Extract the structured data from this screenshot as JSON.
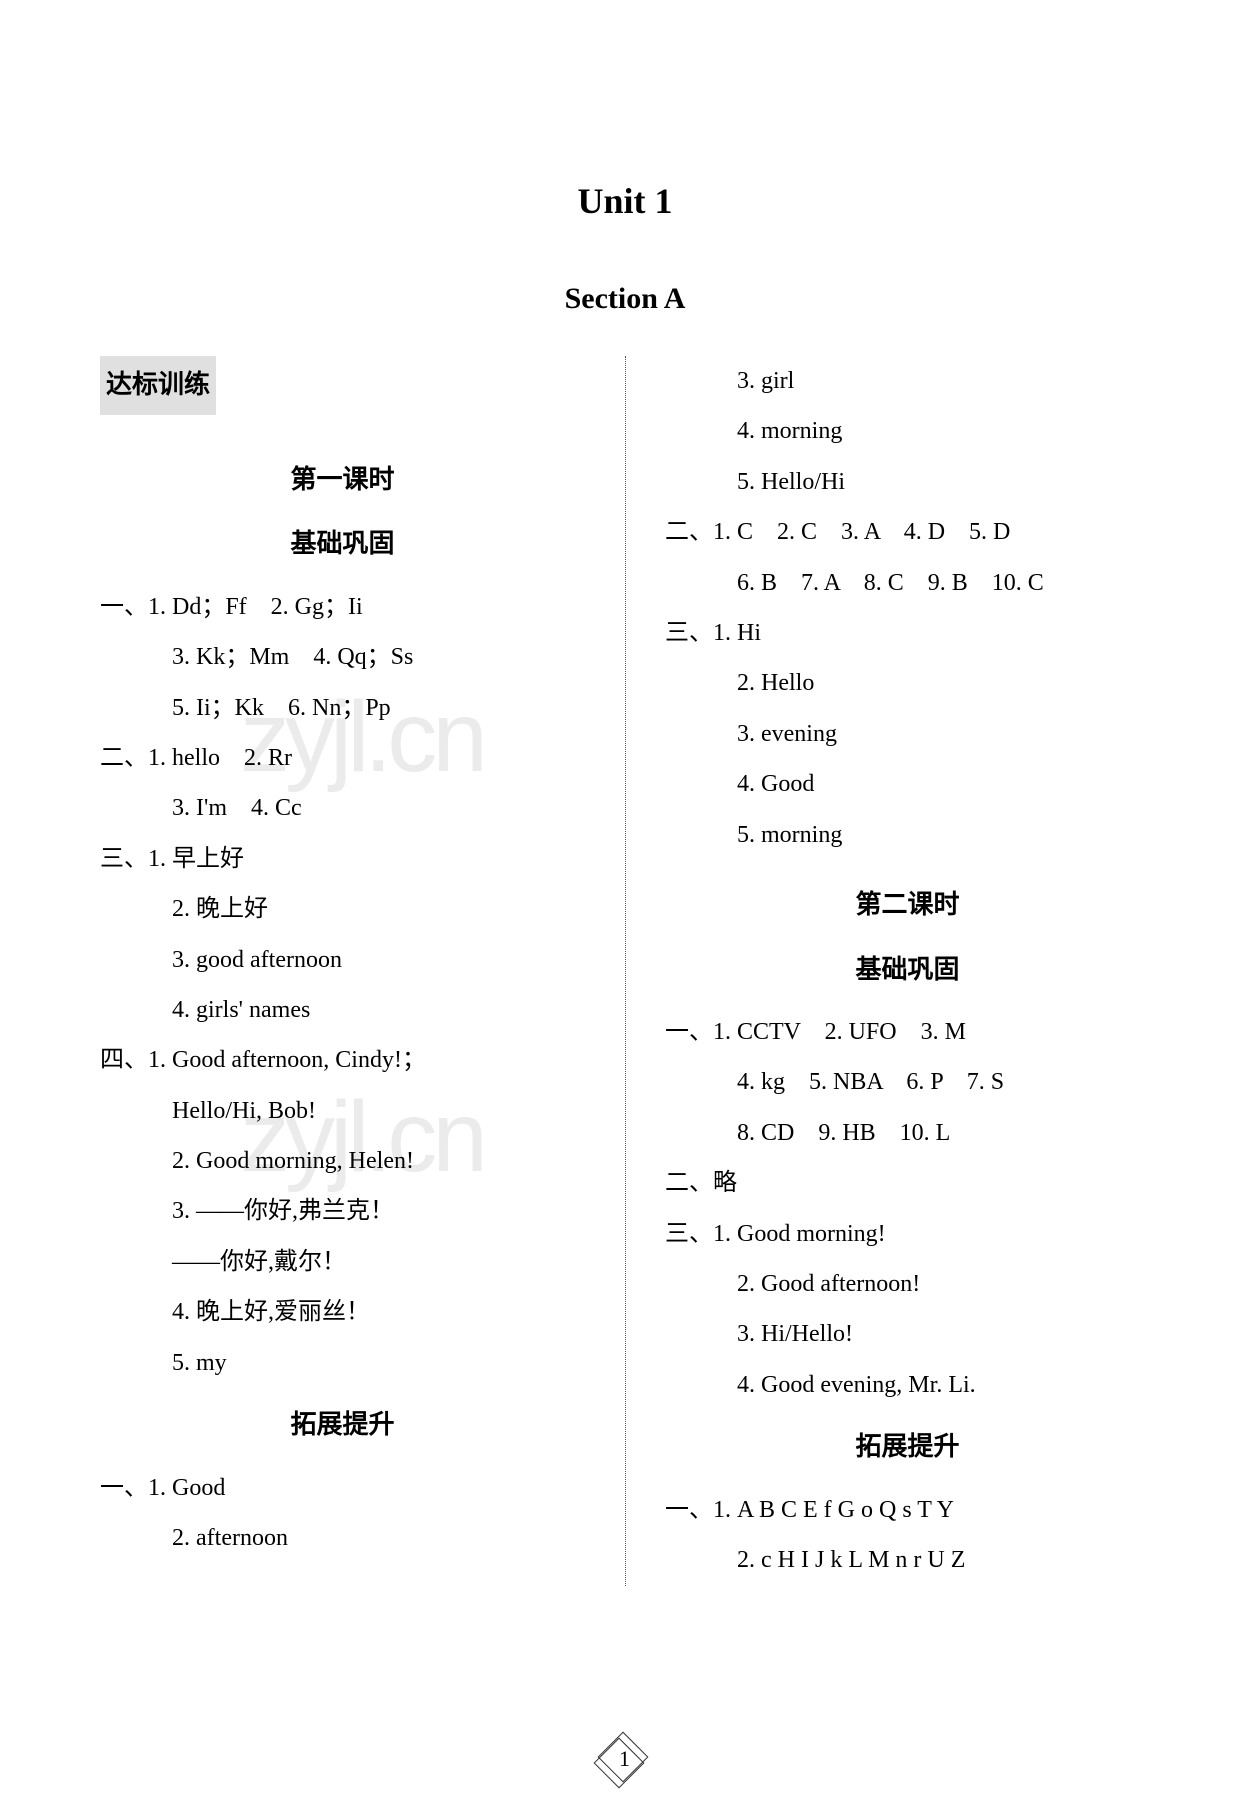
{
  "page": {
    "unit_title": "Unit 1",
    "section_title": "Section A",
    "page_number": "1",
    "watermark_text": "zyjl.cn"
  },
  "left_column": {
    "section_label": "达标训练",
    "lesson1_title": "第一课时",
    "basic_title": "基础巩固",
    "q1": {
      "prefix": "一、",
      "items": [
        "1. Dd；Ff　2. Gg；Ii",
        "3. Kk；Mm　4. Qq；Ss",
        "5. Ii；Kk　6. Nn；Pp"
      ]
    },
    "q2": {
      "prefix": "二、",
      "items": [
        "1. hello　2. Rr",
        "3. I'm　4. Cc"
      ]
    },
    "q3": {
      "prefix": "三、",
      "items": [
        "1. 早上好",
        "2. 晚上好",
        "3. good afternoon",
        "4. girls' names"
      ]
    },
    "q4": {
      "prefix": "四、",
      "items": [
        "1. Good afternoon, Cindy!；",
        "Hello/Hi, Bob!",
        "2. Good morning, Helen!",
        "3. ——你好,弗兰克！",
        "——你好,戴尔！",
        "4. 晚上好,爱丽丝！",
        "5. my"
      ]
    },
    "expand_title": "拓展提升",
    "expand_q1": {
      "prefix": "一、",
      "items": [
        "1. Good",
        "2. afternoon"
      ]
    }
  },
  "right_column": {
    "continue_items": [
      "3. girl",
      "4. morning",
      "5. Hello/Hi"
    ],
    "q2": {
      "prefix": "二、",
      "line1": "1. C　2. C　3. A　4. D　5. D",
      "line2": "6. B　7. A　8. C　9. B　10. C"
    },
    "q3": {
      "prefix": "三、",
      "items": [
        "1. Hi",
        "2. Hello",
        "3. evening",
        "4. Good",
        "5. morning"
      ]
    },
    "lesson2_title": "第二课时",
    "basic_title": "基础巩固",
    "l2_q1": {
      "prefix": "一、",
      "line1": "1. CCTV　2. UFO　3. M",
      "line2": "4. kg　5. NBA　6. P　7. S",
      "line3": "8. CD　9. HB　10. L"
    },
    "l2_q2": {
      "prefix": "二、",
      "text": "略"
    },
    "l2_q3": {
      "prefix": "三、",
      "items": [
        "1. Good morning!",
        "2. Good afternoon!",
        "3. Hi/Hello!",
        "4. Good evening, Mr. Li."
      ]
    },
    "expand_title": "拓展提升",
    "expand_q1": {
      "prefix": "一、",
      "items": [
        "1. A B C E f G o Q s T Y",
        "2. c H I J k L M n r U Z"
      ]
    }
  }
}
